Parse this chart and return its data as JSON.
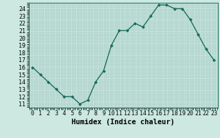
{
  "x": [
    0,
    1,
    2,
    3,
    4,
    5,
    6,
    7,
    8,
    9,
    10,
    11,
    12,
    13,
    14,
    15,
    16,
    17,
    18,
    19,
    20,
    21,
    22,
    23
  ],
  "y": [
    16,
    15,
    14,
    13,
    12,
    12,
    11,
    11.5,
    14,
    15.5,
    19,
    21,
    21,
    22,
    21.5,
    23,
    24.5,
    24.5,
    24,
    24,
    22.5,
    20.5,
    18.5,
    17
  ],
  "line_color": "#1a6b5a",
  "marker": "D",
  "markersize": 2,
  "bg_color": "#cce8e0",
  "grid_color": "#aacfc8",
  "xlabel": "Humidex (Indice chaleur)",
  "ylabel_ticks": [
    11,
    12,
    13,
    14,
    15,
    16,
    17,
    18,
    19,
    20,
    21,
    22,
    23,
    24
  ],
  "xlim": [
    -0.5,
    23.5
  ],
  "ylim": [
    10.5,
    24.8
  ],
  "xlabel_fontsize": 7.5,
  "tick_fontsize": 6,
  "linewidth": 1.0
}
